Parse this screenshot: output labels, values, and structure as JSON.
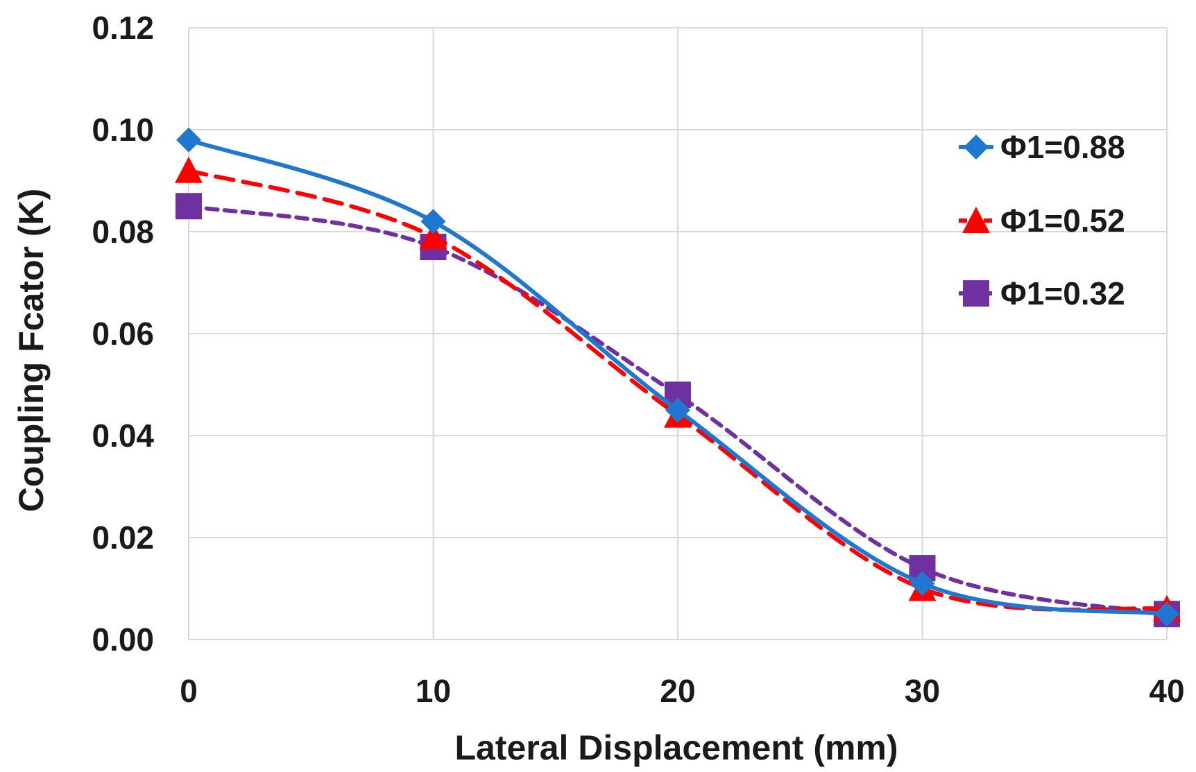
{
  "chart_data": {
    "type": "line",
    "title": "",
    "xlabel": "Lateral Displacement (mm)",
    "ylabel": "Coupling Fcator (K)",
    "x": [
      0,
      10,
      20,
      30,
      40
    ],
    "xlim": [
      0,
      40
    ],
    "ylim": [
      0,
      0.12
    ],
    "xticks": [
      "0",
      "10",
      "20",
      "30",
      "40"
    ],
    "yticks": [
      "0.00",
      "0.02",
      "0.04",
      "0.06",
      "0.08",
      "0.10",
      "0.12"
    ],
    "grid": true,
    "legend_position": "right",
    "series": [
      {
        "name": "Φ1=0.88",
        "values": [
          0.098,
          0.082,
          0.045,
          0.011,
          0.005
        ],
        "color": "#1f77d0",
        "marker": "diamond",
        "dash": "solid"
      },
      {
        "name": "Φ1=0.52",
        "values": [
          0.092,
          0.079,
          0.044,
          0.01,
          0.006
        ],
        "color": "#ff0000",
        "marker": "triangle",
        "dash": "dashed"
      },
      {
        "name": "Φ1=0.32",
        "values": [
          0.085,
          0.077,
          0.048,
          0.014,
          0.005
        ],
        "color": "#7030a0",
        "marker": "square",
        "dash": "dashed"
      }
    ]
  }
}
